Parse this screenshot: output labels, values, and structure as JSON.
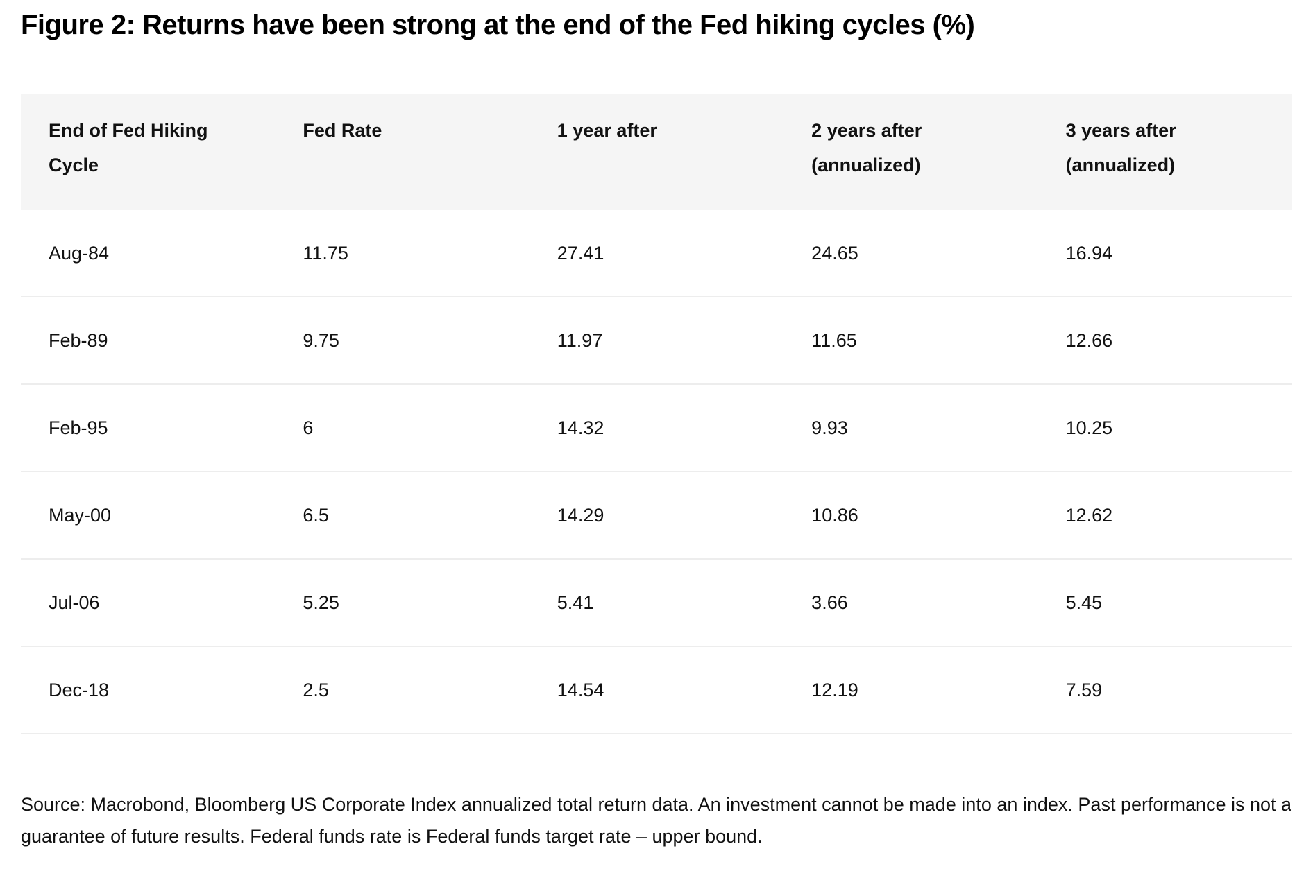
{
  "title": "Figure 2: Returns have been strong at the end of the Fed hiking cycles (%)",
  "chart_data": {
    "type": "table",
    "title": "Figure 2: Returns have been strong at the end of the Fed hiking cycles (%)",
    "columns": [
      "End of Fed Hiking Cycle",
      "Fed Rate",
      "1 year after",
      "2 years after (annualized)",
      "3 years after (annualized)"
    ],
    "header_lines": [
      [
        "End of Fed Hiking",
        "Cycle"
      ],
      [
        "Fed Rate",
        ""
      ],
      [
        "1 year after",
        ""
      ],
      [
        "2 years after",
        "(annualized)"
      ],
      [
        "3 years after",
        "(annualized)"
      ]
    ],
    "rows": [
      [
        "Aug-84",
        "11.75",
        "27.41",
        "24.65",
        "16.94"
      ],
      [
        "Feb-89",
        "9.75",
        "11.97",
        "11.65",
        "12.66"
      ],
      [
        "Feb-95",
        "6",
        "14.32",
        "9.93",
        "10.25"
      ],
      [
        "May-00",
        "6.5",
        "14.29",
        "10.86",
        "12.62"
      ],
      [
        "Jul-06",
        "5.25",
        "5.41",
        "3.66",
        "5.45"
      ],
      [
        "Dec-18",
        "2.5",
        "14.54",
        "12.19",
        "7.59"
      ]
    ]
  },
  "source_note": "Source: Macrobond, Bloomberg US Corporate Index annualized total return data. An investment cannot be made into an index. Past performance is not a guarantee of future results. Federal funds rate is Federal funds target rate – upper bound.",
  "colors": {
    "header_bg": "#f5f5f5",
    "row_divider": "#ededed",
    "text": "#111111"
  }
}
